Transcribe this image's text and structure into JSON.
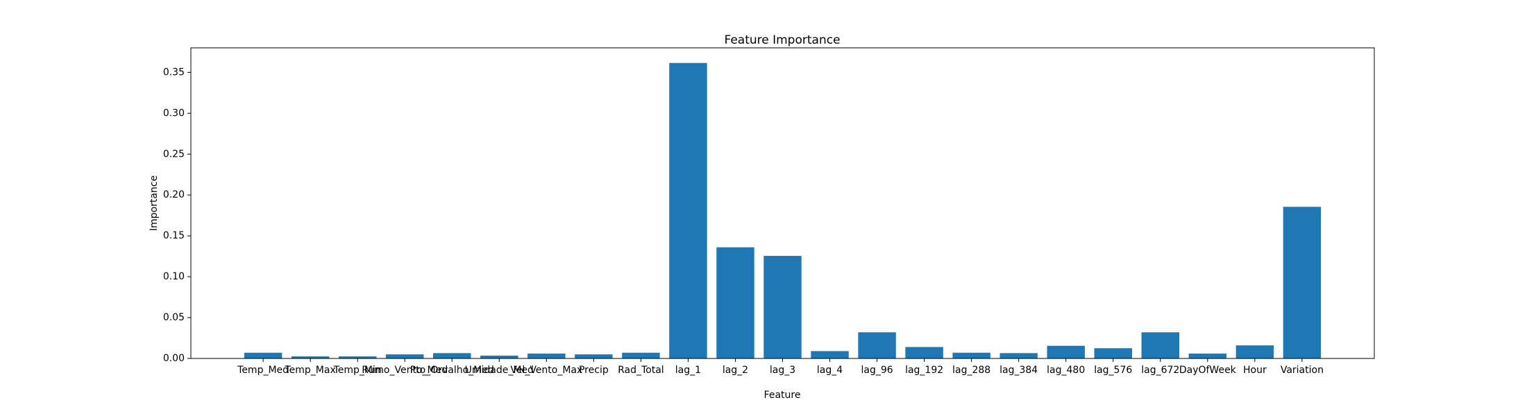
{
  "chart_data": {
    "type": "bar",
    "title": "Feature Importance",
    "xlabel": "Feature",
    "ylabel": "Importance",
    "categories": [
      "Temp_Med",
      "Temp_Max",
      "Temp_Min",
      "Rumo_Vento_Med",
      "Pto_Orvalho_Med",
      "Umidade_Med",
      "Vel_Vento_Max",
      "Precip",
      "Rad_Total",
      "lag_1",
      "lag_2",
      "lag_3",
      "lag_4",
      "lag_96",
      "lag_192",
      "lag_288",
      "lag_384",
      "lag_480",
      "lag_576",
      "lag_672",
      "DayOfWeek",
      "Hour",
      "Variation"
    ],
    "values": [
      0.007,
      0.0025,
      0.0025,
      0.005,
      0.0065,
      0.0035,
      0.006,
      0.005,
      0.007,
      0.3615,
      0.136,
      0.1255,
      0.009,
      0.032,
      0.014,
      0.007,
      0.0065,
      0.0155,
      0.0125,
      0.032,
      0.006,
      0.016,
      0.1855
    ],
    "color": "#1f77b4",
    "ylim": [
      0,
      0.38
    ],
    "yticks": [
      {
        "value": 0,
        "label": "0.00"
      },
      {
        "value": 0.05,
        "label": "0.05"
      },
      {
        "value": 0.1,
        "label": "0.10"
      },
      {
        "value": 0.15,
        "label": "0.15"
      },
      {
        "value": 0.2,
        "label": "0.20"
      },
      {
        "value": 0.25,
        "label": "0.25"
      },
      {
        "value": 0.3,
        "label": "0.30"
      },
      {
        "value": 0.35,
        "label": "0.35"
      }
    ],
    "grid": false
  }
}
